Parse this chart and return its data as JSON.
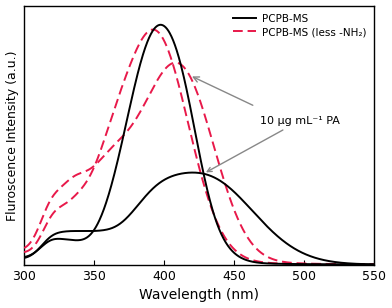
{
  "xlabel": "Wavelength (nm)",
  "ylabel": "Fluroscence Intensity (a.u.)",
  "xlim": [
    300,
    550
  ],
  "ylim": [
    0,
    1.08
  ],
  "legend": [
    "PCPB-MS",
    "PCPB-MS (less -NH₂)"
  ],
  "annotation_text": "10 μg mL⁻¹ PA",
  "line_color_black": "black",
  "line_color_red": "#e8194a",
  "background_color": "white",
  "xticks": [
    300,
    350,
    400,
    450,
    500,
    550
  ]
}
